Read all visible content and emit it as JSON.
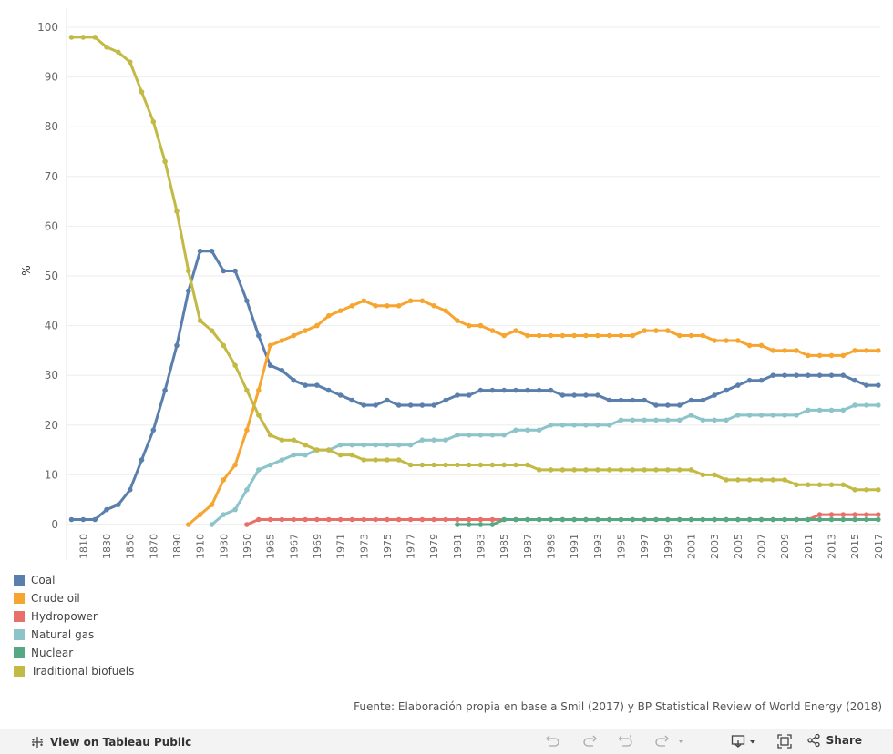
{
  "chart_data": {
    "type": "line",
    "title": "",
    "xlabel": "",
    "ylabel": "%",
    "ylim": [
      0,
      100
    ],
    "yticks": [
      0,
      10,
      20,
      30,
      40,
      50,
      60,
      70,
      80,
      90,
      100
    ],
    "grid": "horizontal",
    "legend_position": "bottom-left",
    "x": [
      "1800",
      "1810",
      "1820",
      "1830",
      "1840",
      "1850",
      "1860",
      "1870",
      "1880",
      "1890",
      "1900",
      "1910",
      "1920",
      "1930",
      "1940",
      "1950",
      "1960",
      "1965",
      "1966",
      "1967",
      "1968",
      "1969",
      "1970",
      "1971",
      "1972",
      "1973",
      "1974",
      "1975",
      "1976",
      "1977",
      "1978",
      "1979",
      "1980",
      "1981",
      "1982",
      "1983",
      "1984",
      "1985",
      "1986",
      "1987",
      "1988",
      "1989",
      "1990",
      "1991",
      "1992",
      "1993",
      "1994",
      "1995",
      "1996",
      "1997",
      "1998",
      "1999",
      "2000",
      "2001",
      "2002",
      "2003",
      "2004",
      "2005",
      "2006",
      "2007",
      "2008",
      "2009",
      "2010",
      "2011",
      "2012",
      "2013",
      "2014",
      "2015",
      "2016",
      "2017"
    ],
    "xtick_labels": [
      "1810",
      "1830",
      "1850",
      "1870",
      "1890",
      "1910",
      "1930",
      "1950",
      "1965",
      "1967",
      "1969",
      "1971",
      "1973",
      "1975",
      "1977",
      "1979",
      "1981",
      "1983",
      "1985",
      "1987",
      "1989",
      "1991",
      "1993",
      "1995",
      "1997",
      "1999",
      "2001",
      "2003",
      "2005",
      "2007",
      "2009",
      "2011",
      "2013",
      "2015",
      "2017"
    ],
    "series": [
      {
        "name": "Coal",
        "color": "#5b7fac",
        "values": [
          1,
          1,
          1,
          3,
          4,
          7,
          13,
          19,
          27,
          36,
          47,
          55,
          55,
          51,
          51,
          45,
          38,
          32,
          31,
          29,
          28,
          28,
          27,
          26,
          25,
          24,
          24,
          25,
          24,
          24,
          24,
          24,
          25,
          26,
          26,
          27,
          27,
          27,
          27,
          27,
          27,
          27,
          26,
          26,
          26,
          26,
          25,
          25,
          25,
          25,
          24,
          24,
          24,
          25,
          25,
          26,
          27,
          28,
          29,
          29,
          30,
          30,
          30,
          30,
          30,
          30,
          30,
          29,
          28,
          28
        ]
      },
      {
        "name": "Crude oil",
        "color": "#f7a531",
        "values": [
          null,
          null,
          null,
          null,
          null,
          null,
          null,
          null,
          null,
          null,
          0,
          2,
          4,
          9,
          12,
          19,
          27,
          36,
          37,
          38,
          39,
          40,
          42,
          43,
          44,
          45,
          44,
          44,
          44,
          45,
          45,
          44,
          43,
          41,
          40,
          40,
          39,
          38,
          39,
          38,
          38,
          38,
          38,
          38,
          38,
          38,
          38,
          38,
          38,
          39,
          39,
          39,
          38,
          38,
          38,
          37,
          37,
          37,
          36,
          36,
          35,
          35,
          35,
          34,
          34,
          34,
          34,
          35,
          35,
          35
        ]
      },
      {
        "name": "Hydropower",
        "color": "#e8706a",
        "values": [
          null,
          null,
          null,
          null,
          null,
          null,
          null,
          null,
          null,
          null,
          null,
          null,
          null,
          null,
          null,
          0,
          1,
          1,
          1,
          1,
          1,
          1,
          1,
          1,
          1,
          1,
          1,
          1,
          1,
          1,
          1,
          1,
          1,
          1,
          1,
          1,
          1,
          1,
          1,
          1,
          1,
          1,
          1,
          1,
          1,
          1,
          1,
          1,
          1,
          1,
          1,
          1,
          1,
          1,
          1,
          1,
          1,
          1,
          1,
          1,
          1,
          1,
          1,
          1,
          2,
          2,
          2,
          2,
          2,
          2
        ]
      },
      {
        "name": "Natural gas",
        "color": "#8cc4c9",
        "values": [
          null,
          null,
          null,
          null,
          null,
          null,
          null,
          null,
          null,
          null,
          null,
          null,
          0,
          2,
          3,
          7,
          11,
          12,
          13,
          14,
          14,
          15,
          15,
          16,
          16,
          16,
          16,
          16,
          16,
          16,
          17,
          17,
          17,
          18,
          18,
          18,
          18,
          18,
          19,
          19,
          19,
          20,
          20,
          20,
          20,
          20,
          20,
          21,
          21,
          21,
          21,
          21,
          21,
          22,
          21,
          21,
          21,
          22,
          22,
          22,
          22,
          22,
          22,
          23,
          23,
          23,
          23,
          24,
          24,
          24
        ]
      },
      {
        "name": "Nuclear",
        "color": "#56a882",
        "values": [
          null,
          null,
          null,
          null,
          null,
          null,
          null,
          null,
          null,
          null,
          null,
          null,
          null,
          null,
          null,
          null,
          null,
          null,
          null,
          null,
          null,
          null,
          null,
          null,
          null,
          null,
          null,
          null,
          null,
          null,
          null,
          null,
          null,
          0,
          0,
          0,
          0,
          1,
          1,
          1,
          1,
          1,
          1,
          1,
          1,
          1,
          1,
          1,
          1,
          1,
          1,
          1,
          1,
          1,
          1,
          1,
          1,
          1,
          1,
          1,
          1,
          1,
          1,
          1,
          1,
          1,
          1,
          1,
          1,
          1
        ]
      },
      {
        "name": "Traditional biofuels",
        "color": "#c3ba45",
        "values": [
          98,
          98,
          98,
          96,
          95,
          93,
          87,
          81,
          73,
          63,
          51,
          41,
          39,
          36,
          32,
          27,
          22,
          18,
          17,
          17,
          16,
          15,
          15,
          14,
          14,
          13,
          13,
          13,
          13,
          12,
          12,
          12,
          12,
          12,
          12,
          12,
          12,
          12,
          12,
          12,
          11,
          11,
          11,
          11,
          11,
          11,
          11,
          11,
          11,
          11,
          11,
          11,
          11,
          11,
          10,
          10,
          9,
          9,
          9,
          9,
          9,
          9,
          8,
          8,
          8,
          8,
          8,
          7,
          7,
          7
        ]
      }
    ]
  },
  "source_note": "Fuente: Elaboración propia en base a Smil (2017) y BP Statistical Review of World Energy (2018)",
  "toolbar": {
    "view_label": "View on Tableau Public",
    "share_label": "Share"
  }
}
